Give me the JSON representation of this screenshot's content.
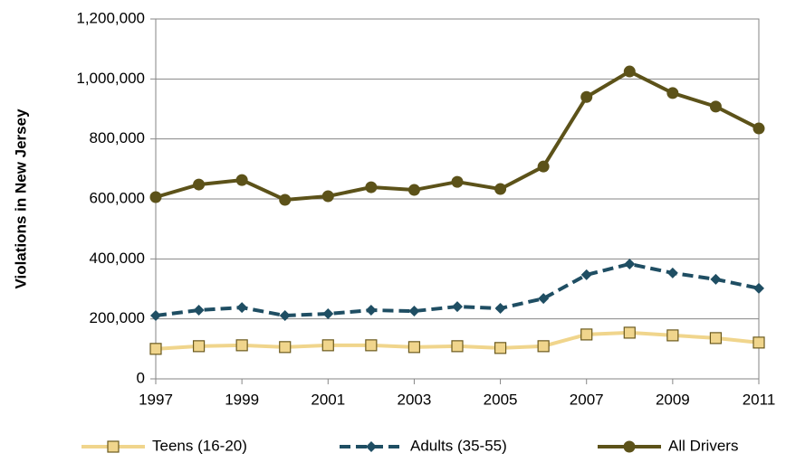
{
  "chart_data": {
    "type": "line",
    "y_label": "Violations in New Jersey",
    "x": [
      1997,
      1998,
      1999,
      2000,
      2001,
      2002,
      2003,
      2004,
      2005,
      2006,
      2007,
      2008,
      2009,
      2010,
      2011
    ],
    "series": [
      {
        "name": "Teens (16-20)",
        "color": "#f0d58c",
        "marker": "square",
        "dash": false,
        "values": [
          100000,
          109000,
          112000,
          106000,
          112000,
          112000,
          106000,
          109000,
          103000,
          109000,
          148000,
          154000,
          145000,
          136000,
          121000
        ]
      },
      {
        "name": "Adults (35-55)",
        "color": "#1f4e63",
        "marker": "diamond",
        "dash": true,
        "values": [
          211000,
          229000,
          238000,
          211000,
          217000,
          229000,
          226000,
          241000,
          235000,
          268000,
          347000,
          383000,
          353000,
          332000,
          302000
        ]
      },
      {
        "name": "All Drivers",
        "color": "#5c5219",
        "marker": "circle",
        "dash": false,
        "values": [
          606000,
          648000,
          663000,
          597000,
          609000,
          639000,
          630000,
          657000,
          633000,
          708000,
          940000,
          1025000,
          953000,
          908000,
          835000
        ]
      }
    ],
    "xlim": [
      1997,
      2011
    ],
    "xticks": [
      1997,
      1999,
      2001,
      2003,
      2005,
      2007,
      2009,
      2011
    ],
    "ylim": [
      0,
      1200000
    ],
    "yticks": [
      0,
      {
        "value": 200000,
        "label": "200,000"
      },
      {
        "value": 400000,
        "label": "400,000"
      },
      {
        "value": 600000,
        "label": "600,000"
      },
      {
        "value": 800000,
        "label": "800,000"
      },
      {
        "value": 1000000,
        "label": "1,000,000"
      },
      {
        "value": 1200000,
        "label": "1,200,000"
      }
    ],
    "grid": true,
    "legend": "bottom"
  }
}
